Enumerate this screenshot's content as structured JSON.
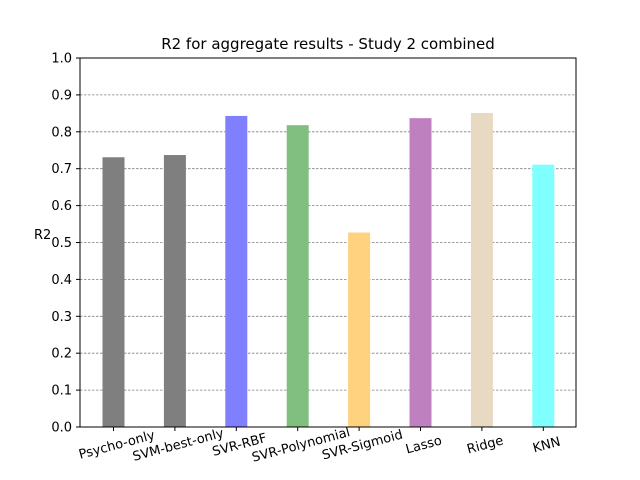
{
  "chart_data": {
    "type": "bar",
    "title": "R2 for aggregate results - Study 2 combined",
    "xlabel": "",
    "ylabel": "R2",
    "ylim": [
      0,
      1.0
    ],
    "yticks": [
      "0.0",
      "0.1",
      "0.2",
      "0.3",
      "0.4",
      "0.5",
      "0.6",
      "0.7",
      "0.8",
      "0.9",
      "1.0"
    ],
    "grid": "horizontal-dashed",
    "categories": [
      "Psycho-only",
      "SVM-best-only",
      "SVR-RBF",
      "SVR-Polynomial",
      "SVR-Sigmoid",
      "Lasso",
      "Ridge",
      "KNN"
    ],
    "values": [
      0.731,
      0.737,
      0.843,
      0.818,
      0.527,
      0.837,
      0.851,
      0.711
    ],
    "colors": [
      "#7f7f7f",
      "#7f7f7f",
      "#8080ff",
      "#80bf80",
      "#ffd280",
      "#bf80bf",
      "#e8d9c2",
      "#80ffff"
    ]
  }
}
